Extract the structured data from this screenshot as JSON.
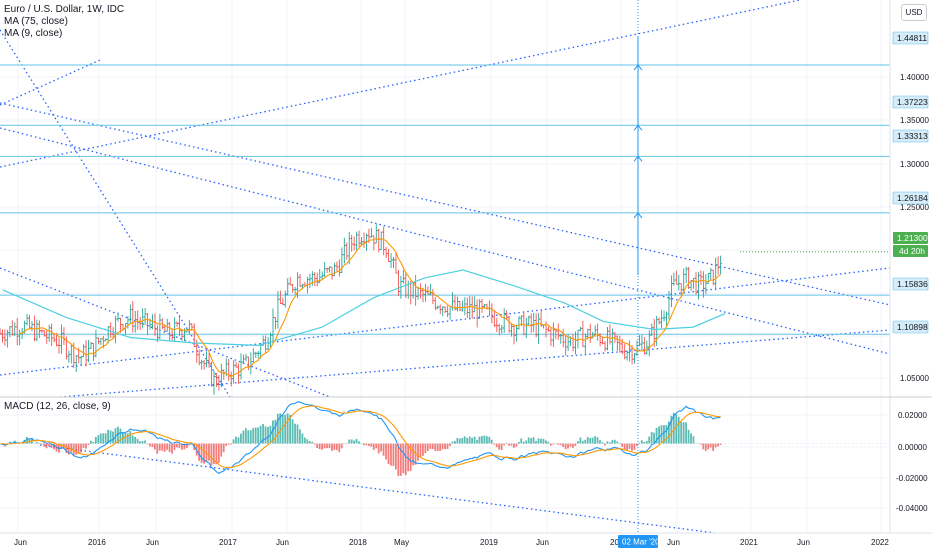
{
  "legend": {
    "symbol": "Euro / U.S. Dollar, 1W, IDC",
    "ma1": "MA (75, close)",
    "ma2": "MA (9, close)",
    "macd": "MACD (12, 26, close, 9)"
  },
  "currency_button": "USD",
  "price_axis": {
    "ticks": [
      "1.40000",
      "1.35000",
      "1.30000",
      "1.25000",
      "1.05000"
    ],
    "levels": [
      "1.44811",
      "1.37223",
      "1.33313",
      "1.26184",
      "1.15836",
      "1.10898"
    ],
    "current_price": "1.21300",
    "countdown": "4d 20h",
    "current_color": "#4caf50",
    "level_color": "#d6ecf8"
  },
  "macd_axis": {
    "ticks": [
      "0.02000",
      "0.00000",
      "-0.02000",
      "-0.04000"
    ]
  },
  "time_axis": {
    "labels": [
      "Jun",
      "2016",
      "Jun",
      "2017",
      "Jun",
      "2018",
      "May",
      "2019",
      "Jun",
      "20",
      "Jun",
      "2021",
      "Jun",
      "2022"
    ],
    "crosshair_label": "02 Mar '20"
  },
  "colors": {
    "candle_up": "#26a69a",
    "candle_down": "#ef5350",
    "ma75": "#4dd0e1",
    "ma9": "#ff9800",
    "macd_line": "#2196f3",
    "signal_line": "#ff9800",
    "level_line": "#66c2e8",
    "trend_line": "#2962ff"
  },
  "chart_data": {
    "type": "candlestick",
    "symbol": "EURUSD",
    "interval": "1W",
    "price_range": [
      1.03,
      1.53
    ],
    "ma75_points": [
      [
        2015.3,
        1.165
      ],
      [
        2015.8,
        1.13
      ],
      [
        2016.3,
        1.105
      ],
      [
        2016.8,
        1.098
      ],
      [
        2017.3,
        1.095
      ],
      [
        2017.8,
        1.118
      ],
      [
        2018.2,
        1.155
      ],
      [
        2018.6,
        1.18
      ],
      [
        2018.9,
        1.19
      ],
      [
        2019.3,
        1.17
      ],
      [
        2019.7,
        1.148
      ],
      [
        2020.0,
        1.125
      ],
      [
        2020.4,
        1.115
      ],
      [
        2020.7,
        1.118
      ],
      [
        2020.95,
        1.135
      ]
    ],
    "horizontal_levels": [
      1.44811,
      1.37223,
      1.33313,
      1.26184,
      1.15836,
      1.10898
    ],
    "last_price": 1.213,
    "macd_range": [
      -0.052,
      0.027
    ]
  }
}
